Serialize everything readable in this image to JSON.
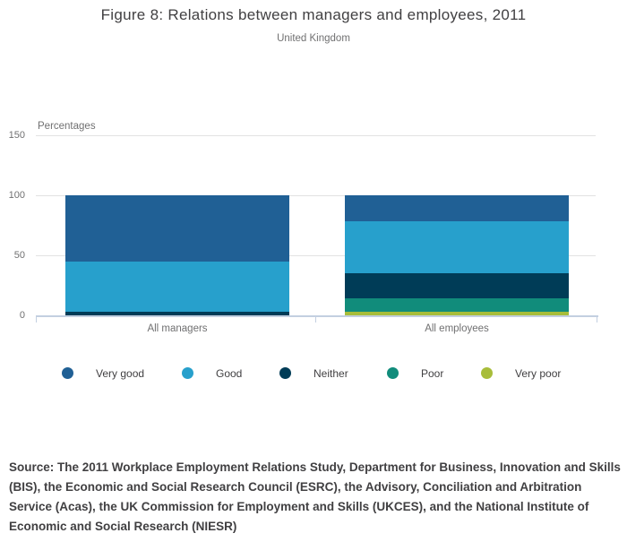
{
  "header": {
    "title": "Figure 8: Relations between managers and employees, 2011",
    "subtitle": "United Kingdom"
  },
  "chart_data": {
    "type": "bar",
    "stacked": true,
    "percentage": true,
    "title": "Figure 8: Relations between managers and employees, 2011",
    "subtitle": "United Kingdom",
    "categories": [
      "All managers",
      "All employees"
    ],
    "series": [
      {
        "name": "Very good",
        "color": "#206095",
        "values": [
          55,
          22
        ]
      },
      {
        "name": "Good",
        "color": "#27a0cc",
        "values": [
          42,
          43
        ]
      },
      {
        "name": "Neither",
        "color": "#003c57",
        "values": [
          3,
          21
        ]
      },
      {
        "name": "Poor",
        "color": "#118c7b",
        "values": [
          0,
          11
        ]
      },
      {
        "name": "Very poor",
        "color": "#a8bd3a",
        "values": [
          0,
          3
        ]
      }
    ],
    "xlabel": "",
    "ylabel": "Percentages",
    "ylim": [
      0,
      150
    ],
    "yticks": [
      0,
      50,
      100,
      150
    ],
    "grid": true,
    "legend_position": "bottom"
  },
  "colors": {
    "gridline": "#e2e2e2",
    "axis_line": "#c3cfe0",
    "axis_text": "#707071",
    "title_text": "#414042",
    "legend_text": "#414042"
  },
  "footer": {
    "source": "Source: The 2011 Workplace Employment Relations Study, Department for Business, Innovation and Skills (BIS), the Economic and Social Research Council (ESRC), the Advisory, Conciliation and Arbitration Service (Acas), the UK Commission for Employment and Skills (UKCES), and the National Institute of Economic and Social Research (NIESR)"
  }
}
